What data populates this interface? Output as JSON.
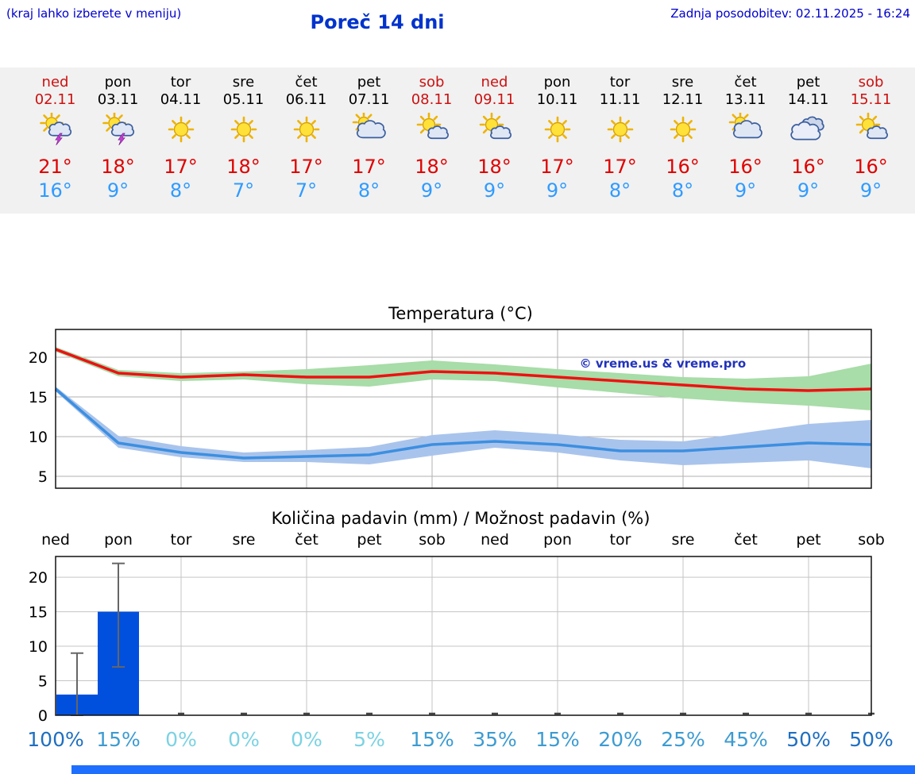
{
  "header": {
    "hint": "(kraj lahko izberete v meniju)",
    "title": "Poreč 14 dni",
    "last_update": "Zadnja posodobitev: 02.11.2025 - 16:24"
  },
  "colors": {
    "weekend_day": "#cc1111",
    "weekday": "#000000",
    "temp_high": "#e00000",
    "temp_low": "#2f9bff",
    "line_max": "#ee1111",
    "band_max": "#a8dca8",
    "line_min": "#3d8fe0",
    "band_min": "#a9c4ec",
    "bar": "#0050dd",
    "whisker": "#666666",
    "prob_low": "#7cd2e2",
    "prob_mid": "#3d9bd1",
    "prob_high": "#1f6fc0",
    "watermark": "#2233bb"
  },
  "days": [
    {
      "name": "ned",
      "date": "02.11",
      "weekend": true,
      "icon": "storm",
      "high": "21°",
      "low": "16°"
    },
    {
      "name": "pon",
      "date": "03.11",
      "weekend": false,
      "icon": "storm",
      "high": "18°",
      "low": "9°"
    },
    {
      "name": "tor",
      "date": "04.11",
      "weekend": false,
      "icon": "sunny",
      "high": "17°",
      "low": "8°"
    },
    {
      "name": "sre",
      "date": "05.11",
      "weekend": false,
      "icon": "sunny",
      "high": "18°",
      "low": "7°"
    },
    {
      "name": "čet",
      "date": "06.11",
      "weekend": false,
      "icon": "sunny",
      "high": "17°",
      "low": "7°"
    },
    {
      "name": "pet",
      "date": "07.11",
      "weekend": false,
      "icon": "cloud-sun",
      "high": "17°",
      "low": "8°"
    },
    {
      "name": "sob",
      "date": "08.11",
      "weekend": true,
      "icon": "sun-cloud",
      "high": "18°",
      "low": "9°"
    },
    {
      "name": "ned",
      "date": "09.11",
      "weekend": true,
      "icon": "sun-cloud",
      "high": "18°",
      "low": "9°"
    },
    {
      "name": "pon",
      "date": "10.11",
      "weekend": false,
      "icon": "sunny",
      "high": "17°",
      "low": "9°"
    },
    {
      "name": "tor",
      "date": "11.11",
      "weekend": false,
      "icon": "sunny",
      "high": "17°",
      "low": "8°"
    },
    {
      "name": "sre",
      "date": "12.11",
      "weekend": false,
      "icon": "sunny",
      "high": "16°",
      "low": "8°"
    },
    {
      "name": "čet",
      "date": "13.11",
      "weekend": false,
      "icon": "cloud-sun",
      "high": "16°",
      "low": "9°"
    },
    {
      "name": "pet",
      "date": "14.11",
      "weekend": false,
      "icon": "cloudy",
      "high": "16°",
      "low": "9°"
    },
    {
      "name": "sob",
      "date": "15.11",
      "weekend": true,
      "icon": "sun-cloud",
      "high": "16°",
      "low": "9°"
    }
  ],
  "chart_data": [
    {
      "type": "line",
      "title": "Temperatura (°C)",
      "x_days": [
        "ned",
        "pon",
        "tor",
        "sre",
        "čet",
        "pet",
        "sob",
        "ned",
        "pon",
        "tor",
        "sre",
        "čet",
        "pet",
        "sob"
      ],
      "ylim": [
        3.5,
        23.5
      ],
      "yticks": [
        5,
        10,
        15,
        20
      ],
      "grid": true,
      "watermark": "© vreme.us & vreme.pro",
      "series": [
        {
          "name": "max",
          "values": [
            21,
            18,
            17.5,
            17.8,
            17.5,
            17.5,
            18.2,
            18,
            17.5,
            17,
            16.5,
            16,
            15.8,
            16
          ]
        },
        {
          "name": "max_upper",
          "values": [
            21.3,
            18.4,
            18,
            18.2,
            18.5,
            19,
            19.6,
            19.1,
            18.5,
            18,
            17.5,
            17.3,
            17.6,
            19.2
          ]
        },
        {
          "name": "max_lower",
          "values": [
            20.7,
            17.6,
            17,
            17.2,
            16.6,
            16.3,
            17.2,
            17,
            16.2,
            15.5,
            14.8,
            14.3,
            13.9,
            13.3
          ]
        },
        {
          "name": "min",
          "values": [
            16,
            9.2,
            8,
            7.3,
            7.5,
            7.7,
            9,
            9.4,
            9,
            8.2,
            8.2,
            8.7,
            9.2,
            9
          ]
        },
        {
          "name": "min_upper",
          "values": [
            16.3,
            10.1,
            8.8,
            8,
            8.3,
            8.7,
            10.2,
            10.8,
            10.3,
            9.6,
            9.4,
            10.5,
            11.6,
            12.1
          ]
        },
        {
          "name": "min_lower",
          "values": [
            15.7,
            8.6,
            7.4,
            6.8,
            6.8,
            6.5,
            7.6,
            8.6,
            8,
            7,
            6.4,
            6.7,
            7,
            6
          ]
        }
      ]
    },
    {
      "type": "bar",
      "title": "Količina padavin (mm) / Možnost padavin (%)",
      "categories": [
        "ned",
        "pon",
        "tor",
        "sre",
        "čet",
        "pet",
        "sob",
        "ned",
        "pon",
        "tor",
        "sre",
        "čet",
        "pet",
        "sob"
      ],
      "values": [
        3,
        15,
        0,
        0,
        0,
        0,
        0,
        0,
        0,
        0,
        0,
        0,
        0,
        0
      ],
      "whisker_low": [
        0,
        7,
        0,
        0,
        0,
        0,
        0,
        0,
        0,
        0,
        0,
        0,
        0,
        0
      ],
      "whisker_high": [
        9,
        22,
        0,
        0,
        0,
        0,
        0,
        0,
        0,
        0,
        0,
        0,
        0,
        0
      ],
      "probability": [
        100,
        15,
        0,
        0,
        0,
        5,
        15,
        35,
        15,
        20,
        25,
        45,
        50,
        50
      ],
      "ylim": [
        0,
        23
      ],
      "yticks": [
        0,
        5,
        10,
        15,
        20
      ],
      "grid": true
    }
  ]
}
